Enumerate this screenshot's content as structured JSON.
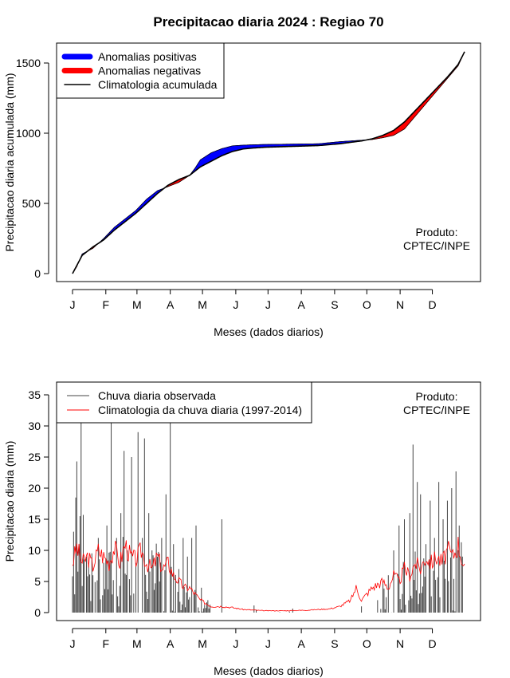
{
  "title": "Precipitacao diaria 2024 : Regiao 70",
  "months": [
    "J",
    "F",
    "M",
    "A",
    "M",
    "J",
    "J",
    "A",
    "S",
    "O",
    "N",
    "D"
  ],
  "chart_data": [
    {
      "type": "area",
      "xlabel": "Meses (dados diarios)",
      "ylabel": "Precipitacao diaria acumulada (mm)",
      "ylim": [
        0,
        1650
      ],
      "yticks": [
        0,
        500,
        1000,
        1500
      ],
      "xlim": [
        1,
        366
      ],
      "legend_position": "top-left",
      "legend": [
        "Anomalias positivas",
        "Anomalias negativas",
        "Climatologia acumulada"
      ],
      "note_lines": [
        "Produto:",
        "CPTEC/INPE"
      ],
      "colors": {
        "positive": "#0000ff",
        "negative": "#ff0000",
        "climatology": "#000000"
      },
      "observed_cumulative": [
        [
          1,
          0
        ],
        [
          5,
          50
        ],
        [
          10,
          140
        ],
        [
          15,
          160
        ],
        [
          20,
          180
        ],
        [
          30,
          250
        ],
        [
          40,
          330
        ],
        [
          50,
          390
        ],
        [
          60,
          450
        ],
        [
          70,
          530
        ],
        [
          80,
          590
        ],
        [
          90,
          620
        ],
        [
          100,
          650
        ],
        [
          110,
          700
        ],
        [
          115,
          750
        ],
        [
          120,
          810
        ],
        [
          130,
          860
        ],
        [
          140,
          890
        ],
        [
          150,
          910
        ],
        [
          160,
          915
        ],
        [
          170,
          918
        ],
        [
          180,
          920
        ],
        [
          200,
          922
        ],
        [
          230,
          925
        ],
        [
          250,
          940
        ],
        [
          270,
          950
        ],
        [
          280,
          955
        ],
        [
          290,
          968
        ],
        [
          300,
          985
        ],
        [
          310,
          1030
        ],
        [
          320,
          1120
        ],
        [
          330,
          1210
        ],
        [
          340,
          1300
        ],
        [
          350,
          1390
        ],
        [
          360,
          1480
        ],
        [
          366,
          1580
        ]
      ],
      "climatology_cumulative": [
        [
          1,
          0
        ],
        [
          10,
          130
        ],
        [
          20,
          190
        ],
        [
          30,
          240
        ],
        [
          40,
          310
        ],
        [
          50,
          370
        ],
        [
          60,
          430
        ],
        [
          70,
          500
        ],
        [
          80,
          570
        ],
        [
          90,
          630
        ],
        [
          100,
          670
        ],
        [
          110,
          700
        ],
        [
          120,
          760
        ],
        [
          130,
          800
        ],
        [
          140,
          840
        ],
        [
          150,
          870
        ],
        [
          160,
          888
        ],
        [
          170,
          895
        ],
        [
          180,
          900
        ],
        [
          200,
          905
        ],
        [
          230,
          912
        ],
        [
          250,
          925
        ],
        [
          270,
          945
        ],
        [
          280,
          960
        ],
        [
          290,
          985
        ],
        [
          300,
          1020
        ],
        [
          310,
          1080
        ],
        [
          320,
          1160
        ],
        [
          330,
          1240
        ],
        [
          340,
          1320
        ],
        [
          350,
          1400
        ],
        [
          360,
          1490
        ],
        [
          366,
          1580
        ]
      ]
    },
    {
      "type": "bar",
      "xlabel": "Meses (dados diarios)",
      "ylabel": "Precipitacao diaria (mm)",
      "ylim": [
        0,
        37
      ],
      "yticks": [
        0,
        5,
        10,
        15,
        20,
        25,
        30,
        35
      ],
      "xlim": [
        1,
        366
      ],
      "legend_position": "top-left",
      "legend": [
        "Chuva diaria observada",
        "Climatologia da chuva diaria (1997-2014)"
      ],
      "note_lines": [
        "Produto:",
        "CPTEC/INPE"
      ],
      "colors": {
        "observed": "#444444",
        "climatology": "#ff0000"
      },
      "observed_daily_peaks": [
        [
          2,
          13
        ],
        [
          4,
          18.5
        ],
        [
          5,
          24.3
        ],
        [
          8,
          15.5
        ],
        [
          9,
          30.5
        ],
        [
          11,
          15.7
        ],
        [
          14,
          9
        ],
        [
          20,
          6
        ],
        [
          25,
          12
        ],
        [
          30,
          8
        ],
        [
          33,
          14
        ],
        [
          37,
          30.5
        ],
        [
          42,
          12
        ],
        [
          46,
          16
        ],
        [
          49,
          26
        ],
        [
          52,
          10
        ],
        [
          56,
          25
        ],
        [
          60,
          8
        ],
        [
          62,
          29
        ],
        [
          66,
          12
        ],
        [
          68,
          28
        ],
        [
          72,
          16
        ],
        [
          75,
          10
        ],
        [
          80,
          9
        ],
        [
          84,
          12
        ],
        [
          88,
          19
        ],
        [
          92,
          30.5
        ],
        [
          95,
          11
        ],
        [
          100,
          7
        ],
        [
          104,
          12
        ],
        [
          108,
          9
        ],
        [
          112,
          12
        ],
        [
          116,
          14
        ],
        [
          121,
          4
        ],
        [
          127,
          2
        ],
        [
          140,
          15
        ],
        [
          270,
          1
        ],
        [
          285,
          2
        ],
        [
          290,
          5
        ],
        [
          295,
          6
        ],
        [
          300,
          10
        ],
        [
          305,
          14
        ],
        [
          310,
          15
        ],
        [
          315,
          16
        ],
        [
          318,
          27
        ],
        [
          322,
          21
        ],
        [
          325,
          19
        ],
        [
          330,
          11
        ],
        [
          334,
          18
        ],
        [
          338,
          12
        ],
        [
          342,
          21
        ],
        [
          346,
          15
        ],
        [
          350,
          18
        ],
        [
          354,
          20
        ],
        [
          358,
          22.7
        ],
        [
          361,
          14
        ],
        [
          364,
          9
        ]
      ],
      "climatology_daily": [
        [
          1,
          8
        ],
        [
          5,
          10.5
        ],
        [
          10,
          8
        ],
        [
          15,
          9
        ],
        [
          20,
          7.5
        ],
        [
          25,
          10
        ],
        [
          30,
          9
        ],
        [
          35,
          8
        ],
        [
          40,
          10.5
        ],
        [
          45,
          8
        ],
        [
          50,
          11
        ],
        [
          55,
          9
        ],
        [
          60,
          8.5
        ],
        [
          65,
          10
        ],
        [
          70,
          8
        ],
        [
          75,
          7
        ],
        [
          80,
          9
        ],
        [
          85,
          7
        ],
        [
          90,
          8
        ],
        [
          95,
          6
        ],
        [
          100,
          5
        ],
        [
          105,
          4
        ],
        [
          110,
          4
        ],
        [
          115,
          3
        ],
        [
          120,
          2
        ],
        [
          125,
          1.5
        ],
        [
          130,
          1
        ],
        [
          140,
          1
        ],
        [
          150,
          0.8
        ],
        [
          160,
          0.5
        ],
        [
          180,
          0.3
        ],
        [
          200,
          0.3
        ],
        [
          220,
          0.4
        ],
        [
          240,
          0.6
        ],
        [
          250,
          1
        ],
        [
          260,
          2
        ],
        [
          265,
          4
        ],
        [
          270,
          2
        ],
        [
          280,
          4
        ],
        [
          290,
          5
        ],
        [
          295,
          4
        ],
        [
          300,
          6
        ],
        [
          305,
          5
        ],
        [
          310,
          7
        ],
        [
          315,
          6
        ],
        [
          320,
          8
        ],
        [
          325,
          7
        ],
        [
          330,
          9
        ],
        [
          335,
          8
        ],
        [
          340,
          9
        ],
        [
          345,
          8
        ],
        [
          350,
          10
        ],
        [
          355,
          9
        ],
        [
          360,
          11
        ],
        [
          366,
          7
        ]
      ]
    }
  ]
}
